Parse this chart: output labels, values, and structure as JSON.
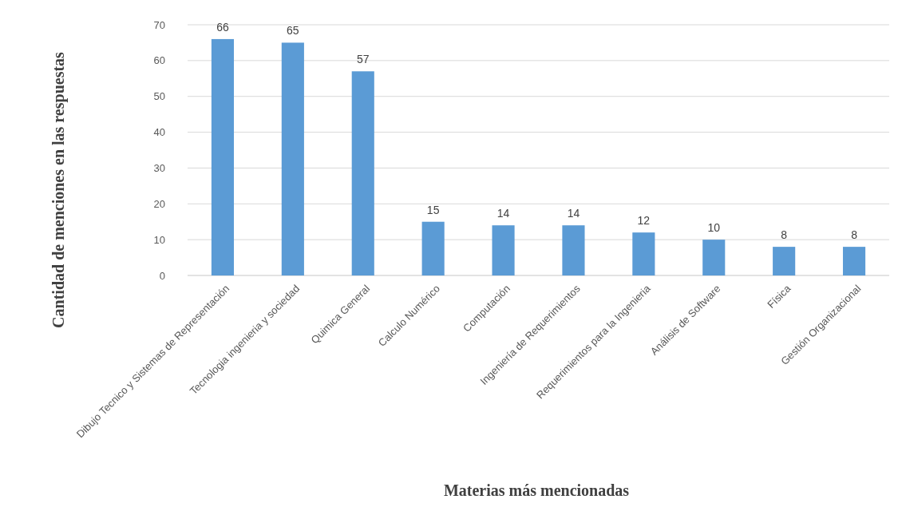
{
  "chart_data": {
    "type": "bar",
    "xlabel": "Materias más mencionadas",
    "ylabel": "Cantidad  de menciones en las respuestas",
    "categories": [
      "Dibujo Tecnico y Sistemas de Representación",
      "Tecnologia ingenieria y sociedad",
      "Quimica General",
      "Calculo Numérico",
      "Computación",
      "Ingeniería de Requerimientos",
      "Requerimientos para la Ingenieria",
      "Análisis de Software",
      "Física",
      "Gestión Organizacional"
    ],
    "values": [
      66,
      65,
      57,
      15,
      14,
      14,
      12,
      10,
      8,
      8
    ],
    "color": "#5b9bd5",
    "ylim": [
      0,
      70
    ],
    "yticks": [
      0,
      10,
      20,
      30,
      40,
      50,
      60,
      70
    ],
    "grid": "y",
    "data_labels": true
  }
}
